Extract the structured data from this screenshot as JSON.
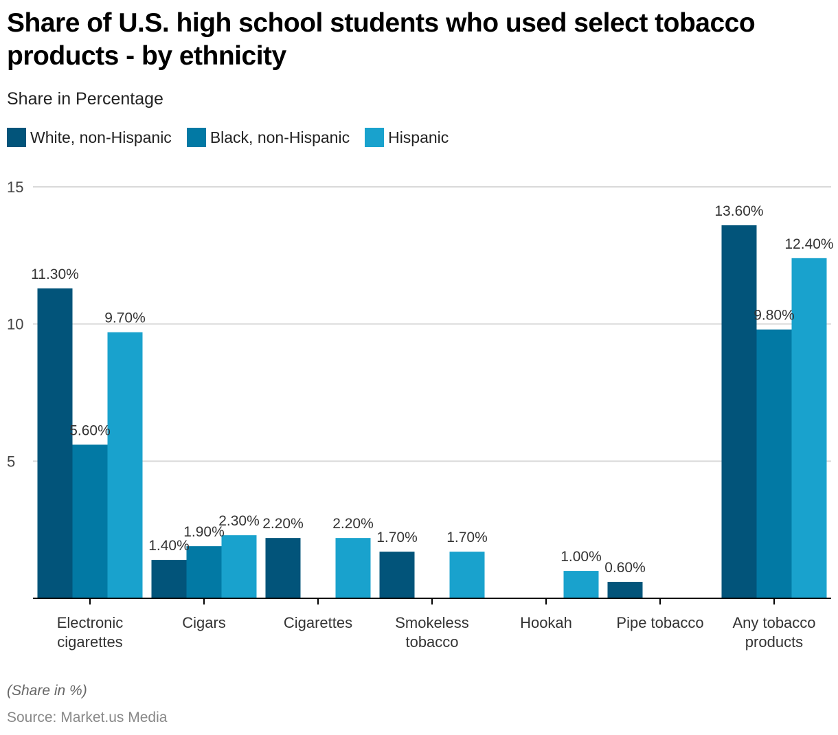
{
  "chart_data": {
    "type": "bar",
    "title": "Share of U.S. high school students who used select tobacco products - by ethnicity",
    "subtitle": "Share in Percentage",
    "xlabel": "",
    "ylabel": "",
    "ylim": [
      0,
      15
    ],
    "yticks": [
      "5",
      "10",
      "15"
    ],
    "ytick_values": [
      5,
      10,
      15
    ],
    "grid": true,
    "legend_position": "top-left",
    "categories": [
      [
        "Electronic",
        "cigarettes"
      ],
      [
        "Cigars"
      ],
      [
        "Cigarettes"
      ],
      [
        "Smokeless",
        "tobacco"
      ],
      [
        "Hookah"
      ],
      [
        "Pipe tobacco"
      ],
      [
        "Any tobacco",
        "products"
      ]
    ],
    "series": [
      {
        "name": "White, non-Hispanic",
        "color": "#02547a",
        "values": [
          11.3,
          1.4,
          2.2,
          1.7,
          null,
          0.6,
          13.6
        ],
        "labels": [
          "11.30%",
          "1.40%",
          "2.20%",
          "1.70%",
          null,
          "0.60%",
          "13.60%"
        ]
      },
      {
        "name": "Black, non-Hispanic",
        "color": "#0279a4",
        "values": [
          5.6,
          1.9,
          null,
          null,
          null,
          null,
          9.8
        ],
        "labels": [
          "5.60%",
          "1.90%",
          null,
          null,
          null,
          null,
          "9.80%"
        ]
      },
      {
        "name": "Hispanic",
        "color": "#19a2cd",
        "values": [
          9.7,
          2.3,
          2.2,
          1.7,
          1.0,
          null,
          12.4
        ],
        "labels": [
          "9.70%",
          "2.30%",
          "2.20%",
          "1.70%",
          "1.00%",
          null,
          "12.40%"
        ]
      }
    ],
    "footnote": "(Share in %)",
    "source": "Source: Market.us Media"
  }
}
